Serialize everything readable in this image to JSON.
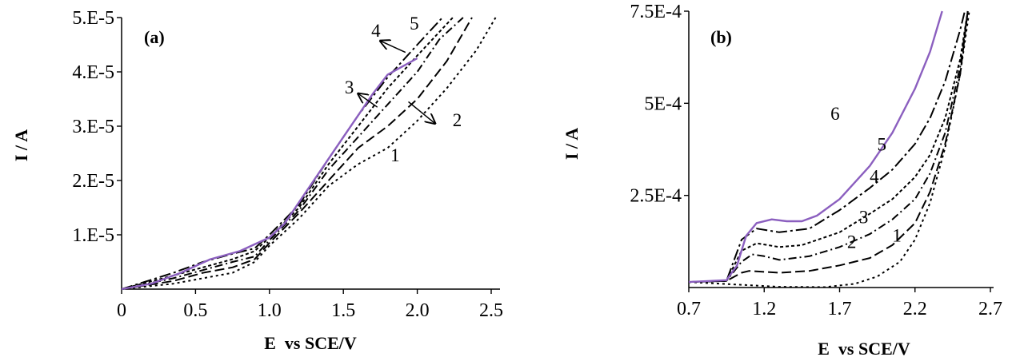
{
  "chart_data": [
    {
      "type": "line",
      "panel_label": "(a)",
      "xlabel": "E  vs SCE/V",
      "ylabel": "I / A",
      "xlim": [
        0,
        2.5
      ],
      "ylim": [
        0,
        5e-05
      ],
      "x_tick_labels": [
        "0",
        "0.5",
        "1.0",
        "1.5",
        "2.0",
        "2.5"
      ],
      "y_tick_labels": [
        "1.E-5",
        "2.E-5",
        "3.E-5",
        "4.E-5",
        "5.E-5"
      ],
      "grid": false,
      "series": [
        {
          "name": "1",
          "dash": "3 4",
          "color": "#000000",
          "points": [
            [
              0,
              0
            ],
            [
              0.35,
              1e-06
            ],
            [
              0.55,
              2e-06
            ],
            [
              0.75,
              3e-06
            ],
            [
              0.9,
              5e-06
            ],
            [
              1.0,
              8e-06
            ],
            [
              1.2,
              1.3e-05
            ],
            [
              1.4,
              1.9e-05
            ],
            [
              1.6,
              2.3e-05
            ],
            [
              1.8,
              2.6e-05
            ],
            [
              2.0,
              3.1e-05
            ],
            [
              2.2,
              3.7e-05
            ],
            [
              2.4,
              4.4e-05
            ],
            [
              2.53,
              5e-05
            ]
          ]
        },
        {
          "name": "2",
          "dash": "12 5",
          "color": "#000000",
          "points": [
            [
              0,
              0
            ],
            [
              0.35,
              1.5e-06
            ],
            [
              0.55,
              3e-06
            ],
            [
              0.75,
              4e-06
            ],
            [
              0.9,
              5.5e-06
            ],
            [
              1.0,
              8.5e-06
            ],
            [
              1.2,
              1.4e-05
            ],
            [
              1.4,
              2e-05
            ],
            [
              1.6,
              2.6e-05
            ],
            [
              1.8,
              3e-05
            ],
            [
              2.0,
              3.5e-05
            ],
            [
              2.2,
              4.2e-05
            ],
            [
              2.37,
              5e-05
            ]
          ]
        },
        {
          "name": "3",
          "dash": "10 4 2 4",
          "color": "#000000",
          "points": [
            [
              0,
              0
            ],
            [
              0.35,
              2e-06
            ],
            [
              0.55,
              3.5e-06
            ],
            [
              0.75,
              5e-06
            ],
            [
              0.9,
              6e-06
            ],
            [
              1.0,
              9e-06
            ],
            [
              1.2,
              1.45e-05
            ],
            [
              1.4,
              2.2e-05
            ],
            [
              1.6,
              2.8e-05
            ],
            [
              1.8,
              3.4e-05
            ],
            [
              2.0,
              4e-05
            ],
            [
              2.15,
              4.6e-05
            ],
            [
              2.31,
              5e-05
            ]
          ]
        },
        {
          "name": "4",
          "dash": "4 3",
          "color": "#000000",
          "points": [
            [
              0,
              0
            ],
            [
              0.35,
              2.5e-06
            ],
            [
              0.55,
              4e-06
            ],
            [
              0.75,
              5.5e-06
            ],
            [
              0.9,
              7e-06
            ],
            [
              1.0,
              9.5e-06
            ],
            [
              1.2,
              1.5e-05
            ],
            [
              1.4,
              2.3e-05
            ],
            [
              1.6,
              3e-05
            ],
            [
              1.8,
              3.7e-05
            ],
            [
              2.0,
              4.3e-05
            ],
            [
              2.24,
              5e-05
            ]
          ]
        },
        {
          "name": "5",
          "dash": "14 4 3 4",
          "color": "#000000",
          "points": [
            [
              0,
              0
            ],
            [
              0.35,
              3e-06
            ],
            [
              0.55,
              5e-06
            ],
            [
              0.75,
              6.5e-06
            ],
            [
              0.9,
              7.5e-06
            ],
            [
              1.0,
              1e-05
            ],
            [
              1.2,
              1.55e-05
            ],
            [
              1.4,
              2.4e-05
            ],
            [
              1.6,
              3.2e-05
            ],
            [
              1.8,
              3.9e-05
            ],
            [
              2.0,
              4.5e-05
            ],
            [
              2.17,
              5e-05
            ]
          ]
        },
        {
          "name": "",
          "dash": "",
          "color": "#8b5fbf",
          "points": [
            [
              0,
              0
            ],
            [
              0.2,
              1e-06
            ],
            [
              0.4,
              3e-06
            ],
            [
              0.6,
              5.5e-06
            ],
            [
              0.8,
              7e-06
            ],
            [
              1.0,
              9.5e-06
            ],
            [
              1.1,
              1.2e-05
            ],
            [
              1.2,
              1.6e-05
            ],
            [
              1.3,
              2e-05
            ],
            [
              1.4,
              2.4e-05
            ],
            [
              1.5,
              2.8e-05
            ],
            [
              1.6,
              3.2e-05
            ],
            [
              1.7,
              3.6e-05
            ],
            [
              1.8,
              3.95e-05
            ],
            [
              1.9,
              4.1e-05
            ],
            [
              2.0,
              4.25e-05
            ]
          ]
        }
      ],
      "curve_labels": [
        {
          "text": "1",
          "x": 1.85,
          "y": 2.35e-05
        },
        {
          "text": "2",
          "x": 2.27,
          "y": 3e-05
        },
        {
          "text": "3",
          "x": 1.54,
          "y": 3.6e-05
        },
        {
          "text": "4",
          "x": 1.72,
          "y": 4.65e-05
        },
        {
          "text": "5",
          "x": 1.98,
          "y": 4.78e-05
        }
      ],
      "arrows": [
        {
          "from": [
            1.92,
            4.36e-05
          ],
          "to": [
            1.75,
            4.57e-05
          ]
        },
        {
          "from": [
            1.73,
            3.35e-05
          ],
          "to": [
            1.6,
            3.6e-05
          ]
        },
        {
          "from": [
            1.94,
            3.45e-05
          ],
          "to": [
            2.12,
            3.05e-05
          ]
        }
      ]
    },
    {
      "type": "line",
      "panel_label": "(b)",
      "xlabel": "E  vs SCE/V",
      "ylabel": "I / A",
      "xlim": [
        0.7,
        2.7
      ],
      "ylim": [
        0,
        0.00075
      ],
      "x_tick_labels": [
        "0.7",
        "1.2",
        "1.7",
        "2.2",
        "2.7"
      ],
      "y_tick_labels": [
        "2.5E-4",
        "5E-4",
        "7.5E-4"
      ],
      "grid": false,
      "series": [
        {
          "name": "1",
          "dash": "3 4",
          "color": "#000000",
          "points": [
            [
              0.7,
              1.5e-05
            ],
            [
              1.3,
              2e-06
            ],
            [
              1.6,
              1e-06
            ],
            [
              1.8,
              1e-05
            ],
            [
              1.95,
              3e-05
            ],
            [
              2.1,
              7e-05
            ],
            [
              2.2,
              0.00013
            ],
            [
              2.3,
              0.00023
            ],
            [
              2.4,
              0.00038
            ],
            [
              2.5,
              0.00058
            ],
            [
              2.56,
              0.00075
            ]
          ]
        },
        {
          "name": "2",
          "dash": "12 5",
          "color": "#000000",
          "points": [
            [
              0.7,
              1.5e-05
            ],
            [
              0.95,
              1.8e-05
            ],
            [
              1.05,
              4e-05
            ],
            [
              1.1,
              4.5e-05
            ],
            [
              1.3,
              4e-05
            ],
            [
              1.5,
              4.5e-05
            ],
            [
              1.7,
              6e-05
            ],
            [
              1.9,
              8e-05
            ],
            [
              2.05,
              0.000115
            ],
            [
              2.2,
              0.000175
            ],
            [
              2.3,
              0.00026
            ],
            [
              2.4,
              0.00039
            ],
            [
              2.5,
              0.00058
            ],
            [
              2.55,
              0.00075
            ]
          ]
        },
        {
          "name": "3",
          "dash": "10 4 2 4",
          "color": "#000000",
          "points": [
            [
              0.7,
              1.5e-05
            ],
            [
              0.95,
              1.8e-05
            ],
            [
              1.05,
              7e-05
            ],
            [
              1.12,
              9e-05
            ],
            [
              1.2,
              8.5e-05
            ],
            [
              1.3,
              7.5e-05
            ],
            [
              1.5,
              8.5e-05
            ],
            [
              1.7,
              0.00011
            ],
            [
              1.9,
              0.000145
            ],
            [
              2.05,
              0.000185
            ],
            [
              2.2,
              0.00024
            ],
            [
              2.3,
              0.00031
            ],
            [
              2.4,
              0.00042
            ],
            [
              2.5,
              0.0006
            ],
            [
              2.55,
              0.00075
            ]
          ]
        },
        {
          "name": "4",
          "dash": "4 3",
          "color": "#000000",
          "points": [
            [
              0.7,
              1.5e-05
            ],
            [
              0.95,
              1.8e-05
            ],
            [
              1.05,
              0.0001
            ],
            [
              1.15,
              0.00012
            ],
            [
              1.3,
              0.00011
            ],
            [
              1.45,
              0.000115
            ],
            [
              1.7,
              0.00015
            ],
            [
              1.9,
              0.0002
            ],
            [
              2.05,
              0.00024
            ],
            [
              2.2,
              0.0003
            ],
            [
              2.3,
              0.00036
            ],
            [
              2.4,
              0.00046
            ],
            [
              2.5,
              0.00062
            ],
            [
              2.55,
              0.00075
            ]
          ]
        },
        {
          "name": "5",
          "dash": "14 4 3 4",
          "color": "#000000",
          "points": [
            [
              0.7,
              1.5e-05
            ],
            [
              0.95,
              1.8e-05
            ],
            [
              1.05,
              0.00013
            ],
            [
              1.15,
              0.00016
            ],
            [
              1.3,
              0.00015
            ],
            [
              1.5,
              0.00016
            ],
            [
              1.7,
              0.00021
            ],
            [
              1.9,
              0.00027
            ],
            [
              2.05,
              0.00032
            ],
            [
              2.2,
              0.00039
            ],
            [
              2.3,
              0.00046
            ],
            [
              2.4,
              0.00056
            ],
            [
              2.5,
              0.0007
            ],
            [
              2.53,
              0.00075
            ]
          ]
        },
        {
          "name": "6",
          "dash": "",
          "color": "#8b5fbf",
          "points": [
            [
              0.7,
              1.5e-05
            ],
            [
              0.95,
              2e-05
            ],
            [
              1.02,
              6e-05
            ],
            [
              1.08,
              0.00014
            ],
            [
              1.15,
              0.000175
            ],
            [
              1.25,
              0.000185
            ],
            [
              1.35,
              0.00018
            ],
            [
              1.45,
              0.00018
            ],
            [
              1.55,
              0.000195
            ],
            [
              1.7,
              0.00024
            ],
            [
              1.9,
              0.00033
            ],
            [
              2.05,
              0.00042
            ],
            [
              2.2,
              0.00054
            ],
            [
              2.3,
              0.00064
            ],
            [
              2.38,
              0.00075
            ]
          ]
        }
      ],
      "curve_labels": [
        {
          "text": "1",
          "x": 2.08,
          "y": 0.000125
        },
        {
          "text": "2",
          "x": 1.78,
          "y": 0.000107
        },
        {
          "text": "3",
          "x": 1.86,
          "y": 0.000175
        },
        {
          "text": "4",
          "x": 1.93,
          "y": 0.000285
        },
        {
          "text": "5",
          "x": 1.98,
          "y": 0.000372
        },
        {
          "text": "6",
          "x": 1.67,
          "y": 0.000455
        }
      ],
      "arrows": []
    }
  ]
}
